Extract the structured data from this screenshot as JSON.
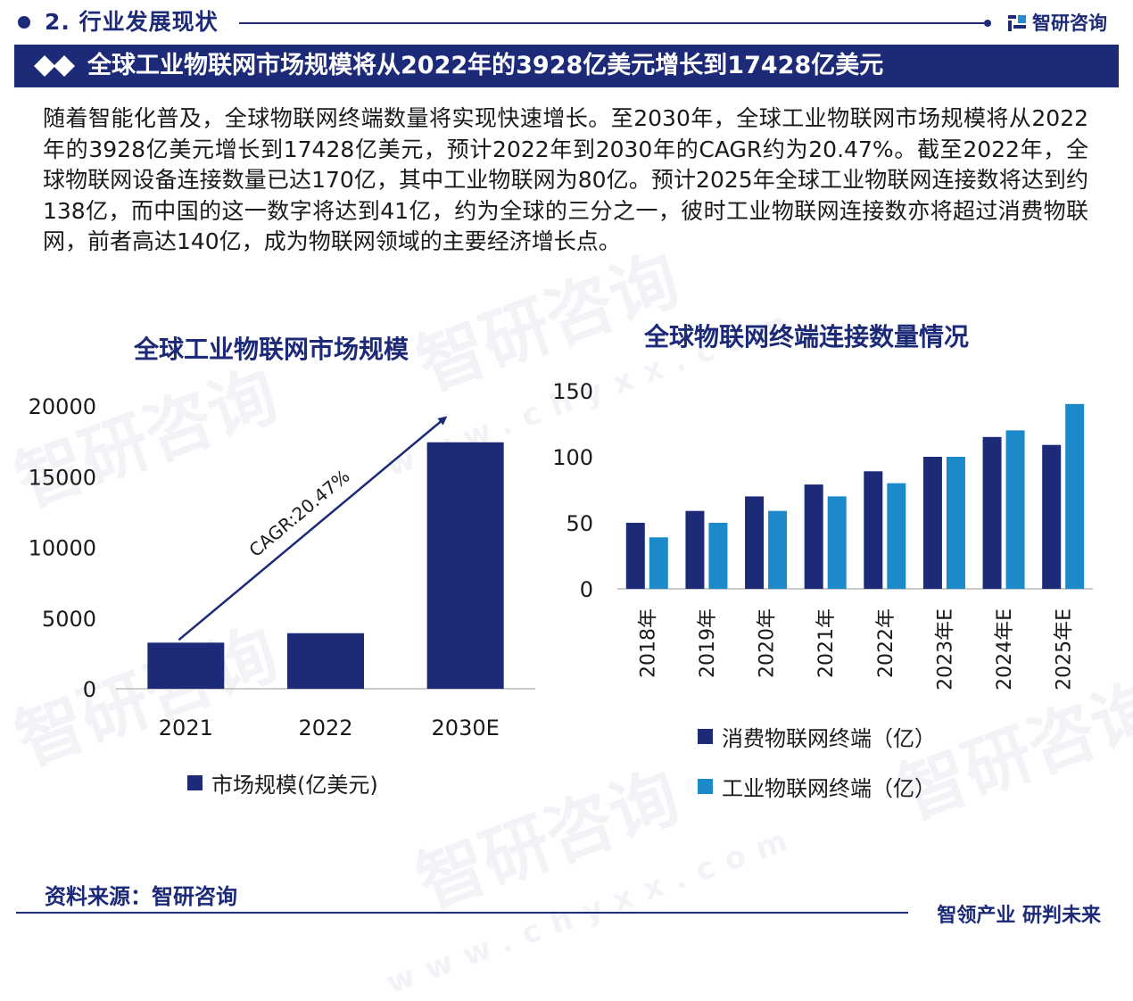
{
  "header": {
    "section_title": "2. 行业发展现状",
    "brand_name": "智研咨询",
    "banner_title": "全球工业物联网市场规模将从2022年的3928亿美元增长到17428亿美元"
  },
  "intro_text": "随着智能化普及，全球物联网终端数量将实现快速增长。至2030年，全球工业物联网市场规模将从2022年的3928亿美元增长到17428亿美元，预计2022年到2030年的CAGR约为20.47%。截至2022年，全球物联网设备连接数量已达170亿，其中工业物联网为80亿。预计2025年全球工业物联网连接数将达到约138亿，而中国的这一数字将达到41亿，约为全球的三分之一，彼时工业物联网连接数亦将超过消费物联网，前者高达140亿，成为物联网领域的主要经济增长点。",
  "chart_data": [
    {
      "type": "bar",
      "title": "全球工业物联网市场规模",
      "categories": [
        "2021",
        "2022",
        "2030E"
      ],
      "series": [
        {
          "name": "市场规模(亿美元)",
          "values": [
            3260,
            3928,
            17428
          ],
          "color": "#1c2a78"
        }
      ],
      "ylim": [
        0,
        20000
      ],
      "yticks": [
        "0",
        "5000",
        "10000",
        "15000",
        "20000"
      ],
      "annotation": "CAGR:20.47%",
      "grid": false,
      "legend_position": "bottom"
    },
    {
      "type": "bar",
      "title": "全球物联网终端连接数量情况",
      "categories": [
        "2018年",
        "2019年",
        "2020年",
        "2021年",
        "2022年",
        "2023年E",
        "2024年E",
        "2025年E"
      ],
      "series": [
        {
          "name": "消费物联网终端（亿）",
          "values": [
            50,
            59,
            70,
            79,
            89,
            100,
            115,
            109
          ],
          "color": "#1c2a78"
        },
        {
          "name": "工业物联网终端（亿）",
          "values": [
            39,
            50,
            59,
            70,
            80,
            100,
            120,
            140
          ],
          "color": "#1c8ac8"
        }
      ],
      "ylim": [
        0,
        150
      ],
      "yticks": [
        "0",
        "50",
        "100",
        "150"
      ],
      "grid": false,
      "legend_position": "bottom"
    }
  ],
  "footer": {
    "source": "资料来源：智研咨询",
    "slogan": "智领产业 研判未来"
  }
}
